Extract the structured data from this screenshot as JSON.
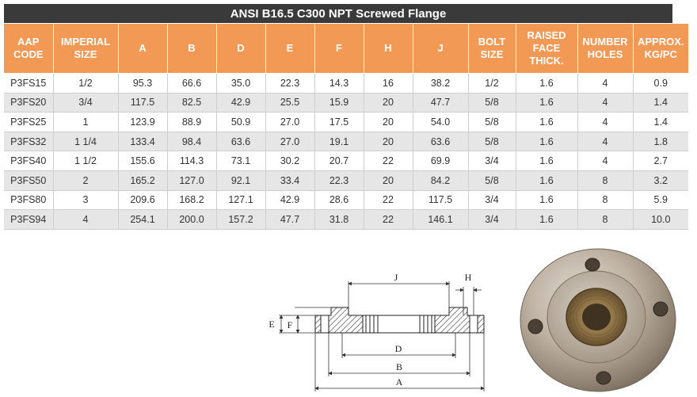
{
  "title": "ANSI B16.5 C300 NPT Screwed Flange",
  "columns": [
    [
      "AAP",
      "CODE"
    ],
    [
      "IMPERIAL",
      "SIZE"
    ],
    [
      "A"
    ],
    [
      "B"
    ],
    [
      "D"
    ],
    [
      "E"
    ],
    [
      "F"
    ],
    [
      "H"
    ],
    [
      "J"
    ],
    [
      "BOLT",
      "SIZE"
    ],
    [
      "RAISED",
      "FACE",
      "THICK."
    ],
    [
      "NUMBER",
      "HOLES"
    ],
    [
      "APPROX.",
      "KG/PC"
    ]
  ],
  "rows": [
    [
      "P3FS15",
      "1/2",
      "95.3",
      "66.6",
      "35.0",
      "22.3",
      "14.3",
      "16",
      "38.2",
      "1/2",
      "1.6",
      "4",
      "0.9"
    ],
    [
      "P3FS20",
      "3/4",
      "117.5",
      "82.5",
      "42.9",
      "25.5",
      "15.9",
      "20",
      "47.7",
      "5/8",
      "1.6",
      "4",
      "1.4"
    ],
    [
      "P3FS25",
      "1",
      "123.9",
      "88.9",
      "50.9",
      "27.0",
      "17.5",
      "20",
      "54.0",
      "5/8",
      "1.6",
      "4",
      "1.4"
    ],
    [
      "P3FS32",
      "1 1/4",
      "133.4",
      "98.4",
      "63.6",
      "27.0",
      "19.1",
      "20",
      "63.6",
      "5/8",
      "1.6",
      "4",
      "1.8"
    ],
    [
      "P3FS40",
      "1 1/2",
      "155.6",
      "114.3",
      "73.1",
      "30.2",
      "20.7",
      "22",
      "69.9",
      "3/4",
      "1.6",
      "4",
      "2.7"
    ],
    [
      "P3FS50",
      "2",
      "165.2",
      "127.0",
      "92.1",
      "33.4",
      "22.3",
      "20",
      "84.2",
      "5/8",
      "1.6",
      "8",
      "3.2"
    ],
    [
      "P3FS80",
      "3",
      "209.6",
      "168.2",
      "127.1",
      "42.9",
      "28.6",
      "22",
      "117.5",
      "3/4",
      "1.6",
      "8",
      "5.9"
    ],
    [
      "P3FS94",
      "4",
      "254.1",
      "200.0",
      "157.2",
      "47.7",
      "31.8",
      "22",
      "146.1",
      "3/4",
      "1.6",
      "8",
      "10.0"
    ]
  ],
  "diagram": {
    "labels": {
      "j": "J",
      "h": "H",
      "e": "E",
      "f": "F",
      "d": "D",
      "b": "B",
      "a": "A"
    }
  },
  "colors": {
    "header": "#f29a55",
    "title_bar": "#3a3a3a",
    "stripe": "#e6e6e6"
  }
}
